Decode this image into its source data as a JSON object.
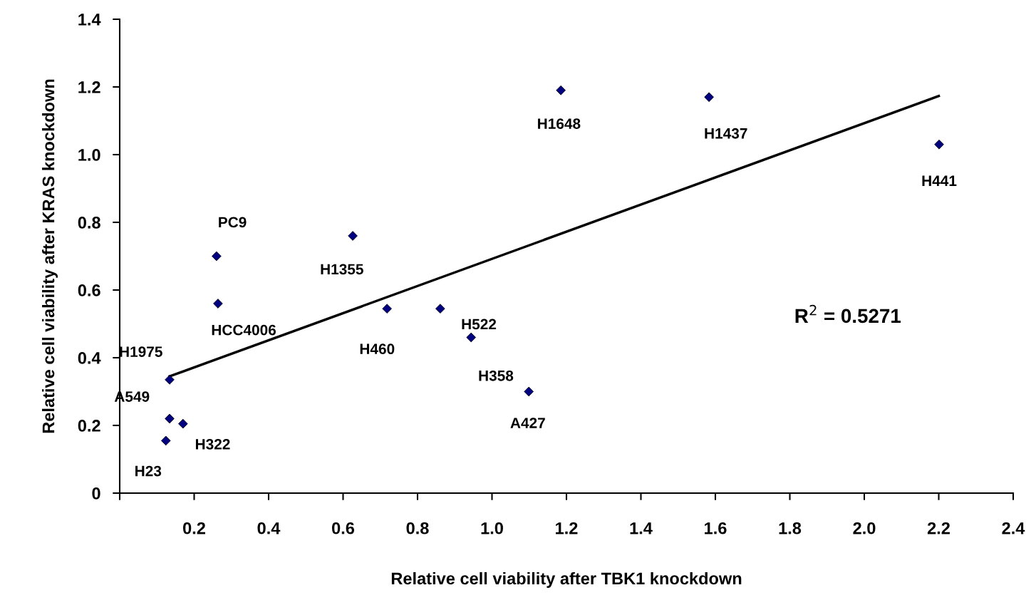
{
  "chart_data": {
    "type": "scatter",
    "xlabel": "Relative cell viability after TBK1 knockdown",
    "ylabel": "Relative cell viability after KRAS knockdown",
    "xlim": [
      0,
      2.4
    ],
    "xticks": [
      {
        "value": 0,
        "label": null
      },
      {
        "value": 0.2,
        "label": "0.2"
      },
      {
        "value": 0.4,
        "label": "0.4"
      },
      {
        "value": 0.6,
        "label": "0.6"
      },
      {
        "value": 0.8,
        "label": "0.8"
      },
      {
        "value": 1.0,
        "label": "1.0"
      },
      {
        "value": 1.2,
        "label": "1.2"
      },
      {
        "value": 1.4,
        "label": "1.4"
      },
      {
        "value": 1.6,
        "label": "1.6"
      },
      {
        "value": 1.8,
        "label": "1.8"
      },
      {
        "value": 2.0,
        "label": "2.0"
      },
      {
        "value": 2.2,
        "label": "2.2"
      },
      {
        "value": 2.4,
        "label": "2.4"
      }
    ],
    "ylim": [
      0,
      1.4
    ],
    "yticks": [
      0,
      {
        "value": 0.2,
        "label": "0.2"
      },
      {
        "value": 0.4,
        "label": "0.4"
      },
      {
        "value": 0.6,
        "label": "0.6"
      },
      {
        "value": 0.8,
        "label": "0.8"
      },
      {
        "value": 1.0,
        "label": "1.0"
      },
      {
        "value": 1.2,
        "label": "1.2"
      },
      {
        "value": 1.4,
        "label": "1.4"
      }
    ],
    "grid": false,
    "marker": "diamond",
    "series": [
      {
        "color": "#000080",
        "x": [
          1.185,
          1.583,
          2.201,
          0.26,
          0.626,
          0.264,
          0.718,
          0.861,
          0.944,
          1.099,
          0.134,
          0.134,
          0.17,
          0.124
        ],
        "values": [
          1.19,
          1.17,
          1.03,
          0.7,
          0.76,
          0.56,
          0.545,
          0.545,
          0.46,
          0.3,
          0.335,
          0.22,
          0.205,
          0.155
        ]
      },
      {
        "type": "line",
        "marker": "none",
        "color": "#000000",
        "x": [
          0.134,
          2.2
        ],
        "values": [
          0.345,
          1.173
        ]
      }
    ],
    "annotations": [
      {
        "text": "H1648",
        "x": 1.185,
        "y": 1.19
      },
      {
        "text": "H1437",
        "x": 1.583,
        "y": 1.17
      },
      {
        "text": "H441",
        "x": 2.201,
        "y": 1.03
      },
      {
        "text": "PC9",
        "x": 0.26,
        "y": 0.7
      },
      {
        "text": "H1355",
        "x": 0.626,
        "y": 0.76
      },
      {
        "text": "HCC4006",
        "x": 0.264,
        "y": 0.56
      },
      {
        "text": "H460",
        "x": 0.718,
        "y": 0.545
      },
      {
        "text": "H522",
        "x": 0.861,
        "y": 0.545
      },
      {
        "text": "H358",
        "x": 0.944,
        "y": 0.46
      },
      {
        "text": "A427",
        "x": 1.099,
        "y": 0.3
      },
      {
        "text": "H1975",
        "x": 0.134,
        "y": 0.335
      },
      {
        "text": "A549",
        "x": 0.134,
        "y": 0.22
      },
      {
        "text": "H322",
        "x": 0.17,
        "y": 0.205
      },
      {
        "text": "H23",
        "x": 0.124,
        "y": 0.155
      },
      "R$^{2}$ = 0.5271"
    ]
  }
}
